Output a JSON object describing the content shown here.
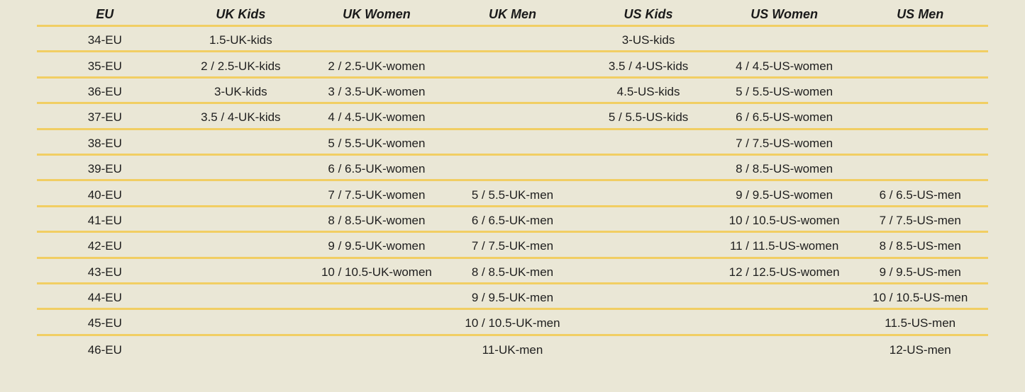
{
  "colors": {
    "background": "#EAE7D6",
    "row_line": "#F1CE63",
    "header_text": "#1A1A1A",
    "cell_text": "#1E1E1E"
  },
  "chart_data": {
    "type": "table",
    "columns": [
      "EU",
      "UK Kids",
      "UK Women",
      "UK Men",
      "US Kids",
      "US Women",
      "US Men"
    ],
    "rows": [
      [
        "34-EU",
        "1.5-UK-kids",
        "",
        "",
        "3-US-kids",
        "",
        ""
      ],
      [
        "35-EU",
        "2 / 2.5-UK-kids",
        "2 / 2.5-UK-women",
        "",
        "3.5 / 4-US-kids",
        "4 / 4.5-US-women",
        ""
      ],
      [
        "36-EU",
        "3-UK-kids",
        "3 / 3.5-UK-women",
        "",
        "4.5-US-kids",
        "5 / 5.5-US-women",
        ""
      ],
      [
        "37-EU",
        "3.5 / 4-UK-kids",
        "4 / 4.5-UK-women",
        "",
        "5 / 5.5-US-kids",
        "6 / 6.5-US-women",
        ""
      ],
      [
        "38-EU",
        "",
        "5 / 5.5-UK-women",
        "",
        "",
        "7 / 7.5-US-women",
        ""
      ],
      [
        "39-EU",
        "",
        "6 / 6.5-UK-women",
        "",
        "",
        "8 / 8.5-US-women",
        ""
      ],
      [
        "40-EU",
        "",
        "7 / 7.5-UK-women",
        "5 / 5.5-UK-men",
        "",
        "9 / 9.5-US-women",
        "6 / 6.5-US-men"
      ],
      [
        "41-EU",
        "",
        "8 / 8.5-UK-women",
        "6 / 6.5-UK-men",
        "",
        "10 / 10.5-US-women",
        "7 / 7.5-US-men"
      ],
      [
        "42-EU",
        "",
        "9 / 9.5-UK-women",
        "7 / 7.5-UK-men",
        "",
        "11 / 11.5-US-women",
        "8 / 8.5-US-men"
      ],
      [
        "43-EU",
        "",
        "10 / 10.5-UK-women",
        "8 / 8.5-UK-men",
        "",
        "12 / 12.5-US-women",
        "9 / 9.5-US-men"
      ],
      [
        "44-EU",
        "",
        "",
        "9 / 9.5-UK-men",
        "",
        "",
        "10 / 10.5-US-men"
      ],
      [
        "45-EU",
        "",
        "",
        "10 / 10.5-UK-men",
        "",
        "",
        "11.5-US-men"
      ],
      [
        "46-EU",
        "",
        "",
        "11-UK-men",
        "",
        "",
        "12-US-men"
      ]
    ]
  }
}
